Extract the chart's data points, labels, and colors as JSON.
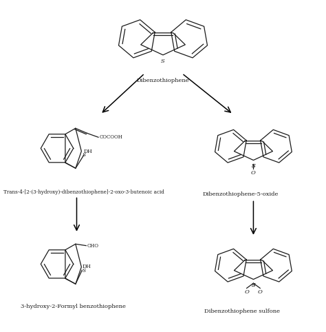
{
  "background_color": "#ffffff",
  "line_color": "#1a1a1a",
  "lw": 0.9,
  "font_size_label": 6.0,
  "font_size_small": 5.2,
  "compounds": {
    "dibenzothiophene": {
      "label": "Dibenzothiophene"
    },
    "trans4": {
      "label": "Trans-4-[2-(3-hydroxy)-dibenzothiophene]-2-oxo-3-butenoic acid"
    },
    "dbt5oxide": {
      "label": "Dibenzothiophene-5-oxide"
    },
    "hydroxy": {
      "label": "3-hydroxy-2-Formyl benzothiophene"
    },
    "sulfone": {
      "label": "Dibenzothiophene sulfone"
    }
  }
}
